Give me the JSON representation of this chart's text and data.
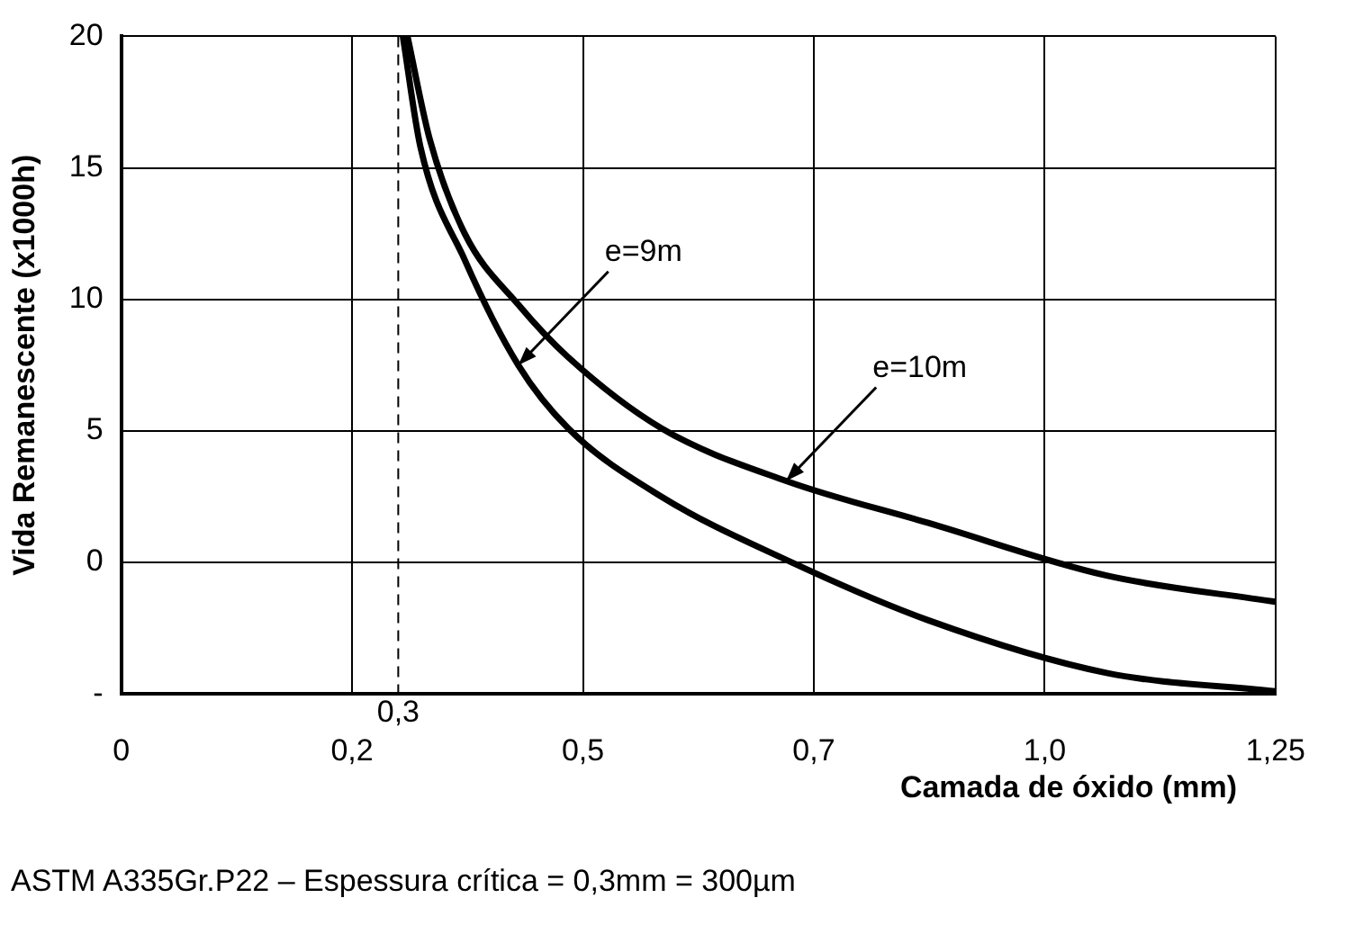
{
  "chart_data": {
    "type": "line",
    "xlabel": "Camada de óxido (mm)",
    "ylabel": "Vida Remanescente (x1000h)",
    "xlim": [
      0,
      1.25
    ],
    "xticks": [
      0,
      {
        "value": 0.25,
        "label": "0,2"
      },
      {
        "value": 0.5,
        "label": "0,5"
      },
      {
        "value": 0.75,
        "label": "0,7"
      },
      {
        "value": 1.0,
        "label": "1,0"
      },
      {
        "value": 1.25,
        "label": "1,25"
      }
    ],
    "ylim": [
      -5,
      20
    ],
    "yticks": [
      {
        "value": -5,
        "label": "-"
      },
      0,
      5,
      10,
      15,
      20
    ],
    "series": [
      {
        "color": "#000000",
        "x": [
          0.305,
          0.324,
          0.372,
          0.43,
          0.484,
          0.585,
          0.72,
          0.874,
          1.067,
          1.25
        ],
        "values": [
          20,
          15.8,
          11.5,
          7.5,
          5.1,
          2.5,
          0.1,
          -2.2,
          -4.2,
          -4.9
        ]
      },
      {
        "color": "#000000",
        "x": [
          0.31,
          0.334,
          0.372,
          0.43,
          0.484,
          0.585,
          0.72,
          0.874,
          1.067,
          1.25
        ],
        "values": [
          20,
          16.1,
          12.5,
          9.8,
          7.8,
          5.1,
          3.1,
          1.5,
          -0.5,
          -1.5
        ]
      }
    ],
    "ref_lines": [
      {
        "axis": "x",
        "value": 0.3,
        "label": "0,3",
        "line_style": "dashed"
      }
    ],
    "annotations": [
      {
        "text": "e=9m",
        "x": 0.43,
        "y": 7.5
      },
      {
        "text": "e=10m",
        "x": 0.72,
        "y": 3.1
      },
      "ASTM A335Gr.P22 – Espessura crítica = 0,3mm = 300µm"
    ],
    "grid": true,
    "legend": false,
    "marker": "none",
    "line_style": "solid"
  }
}
